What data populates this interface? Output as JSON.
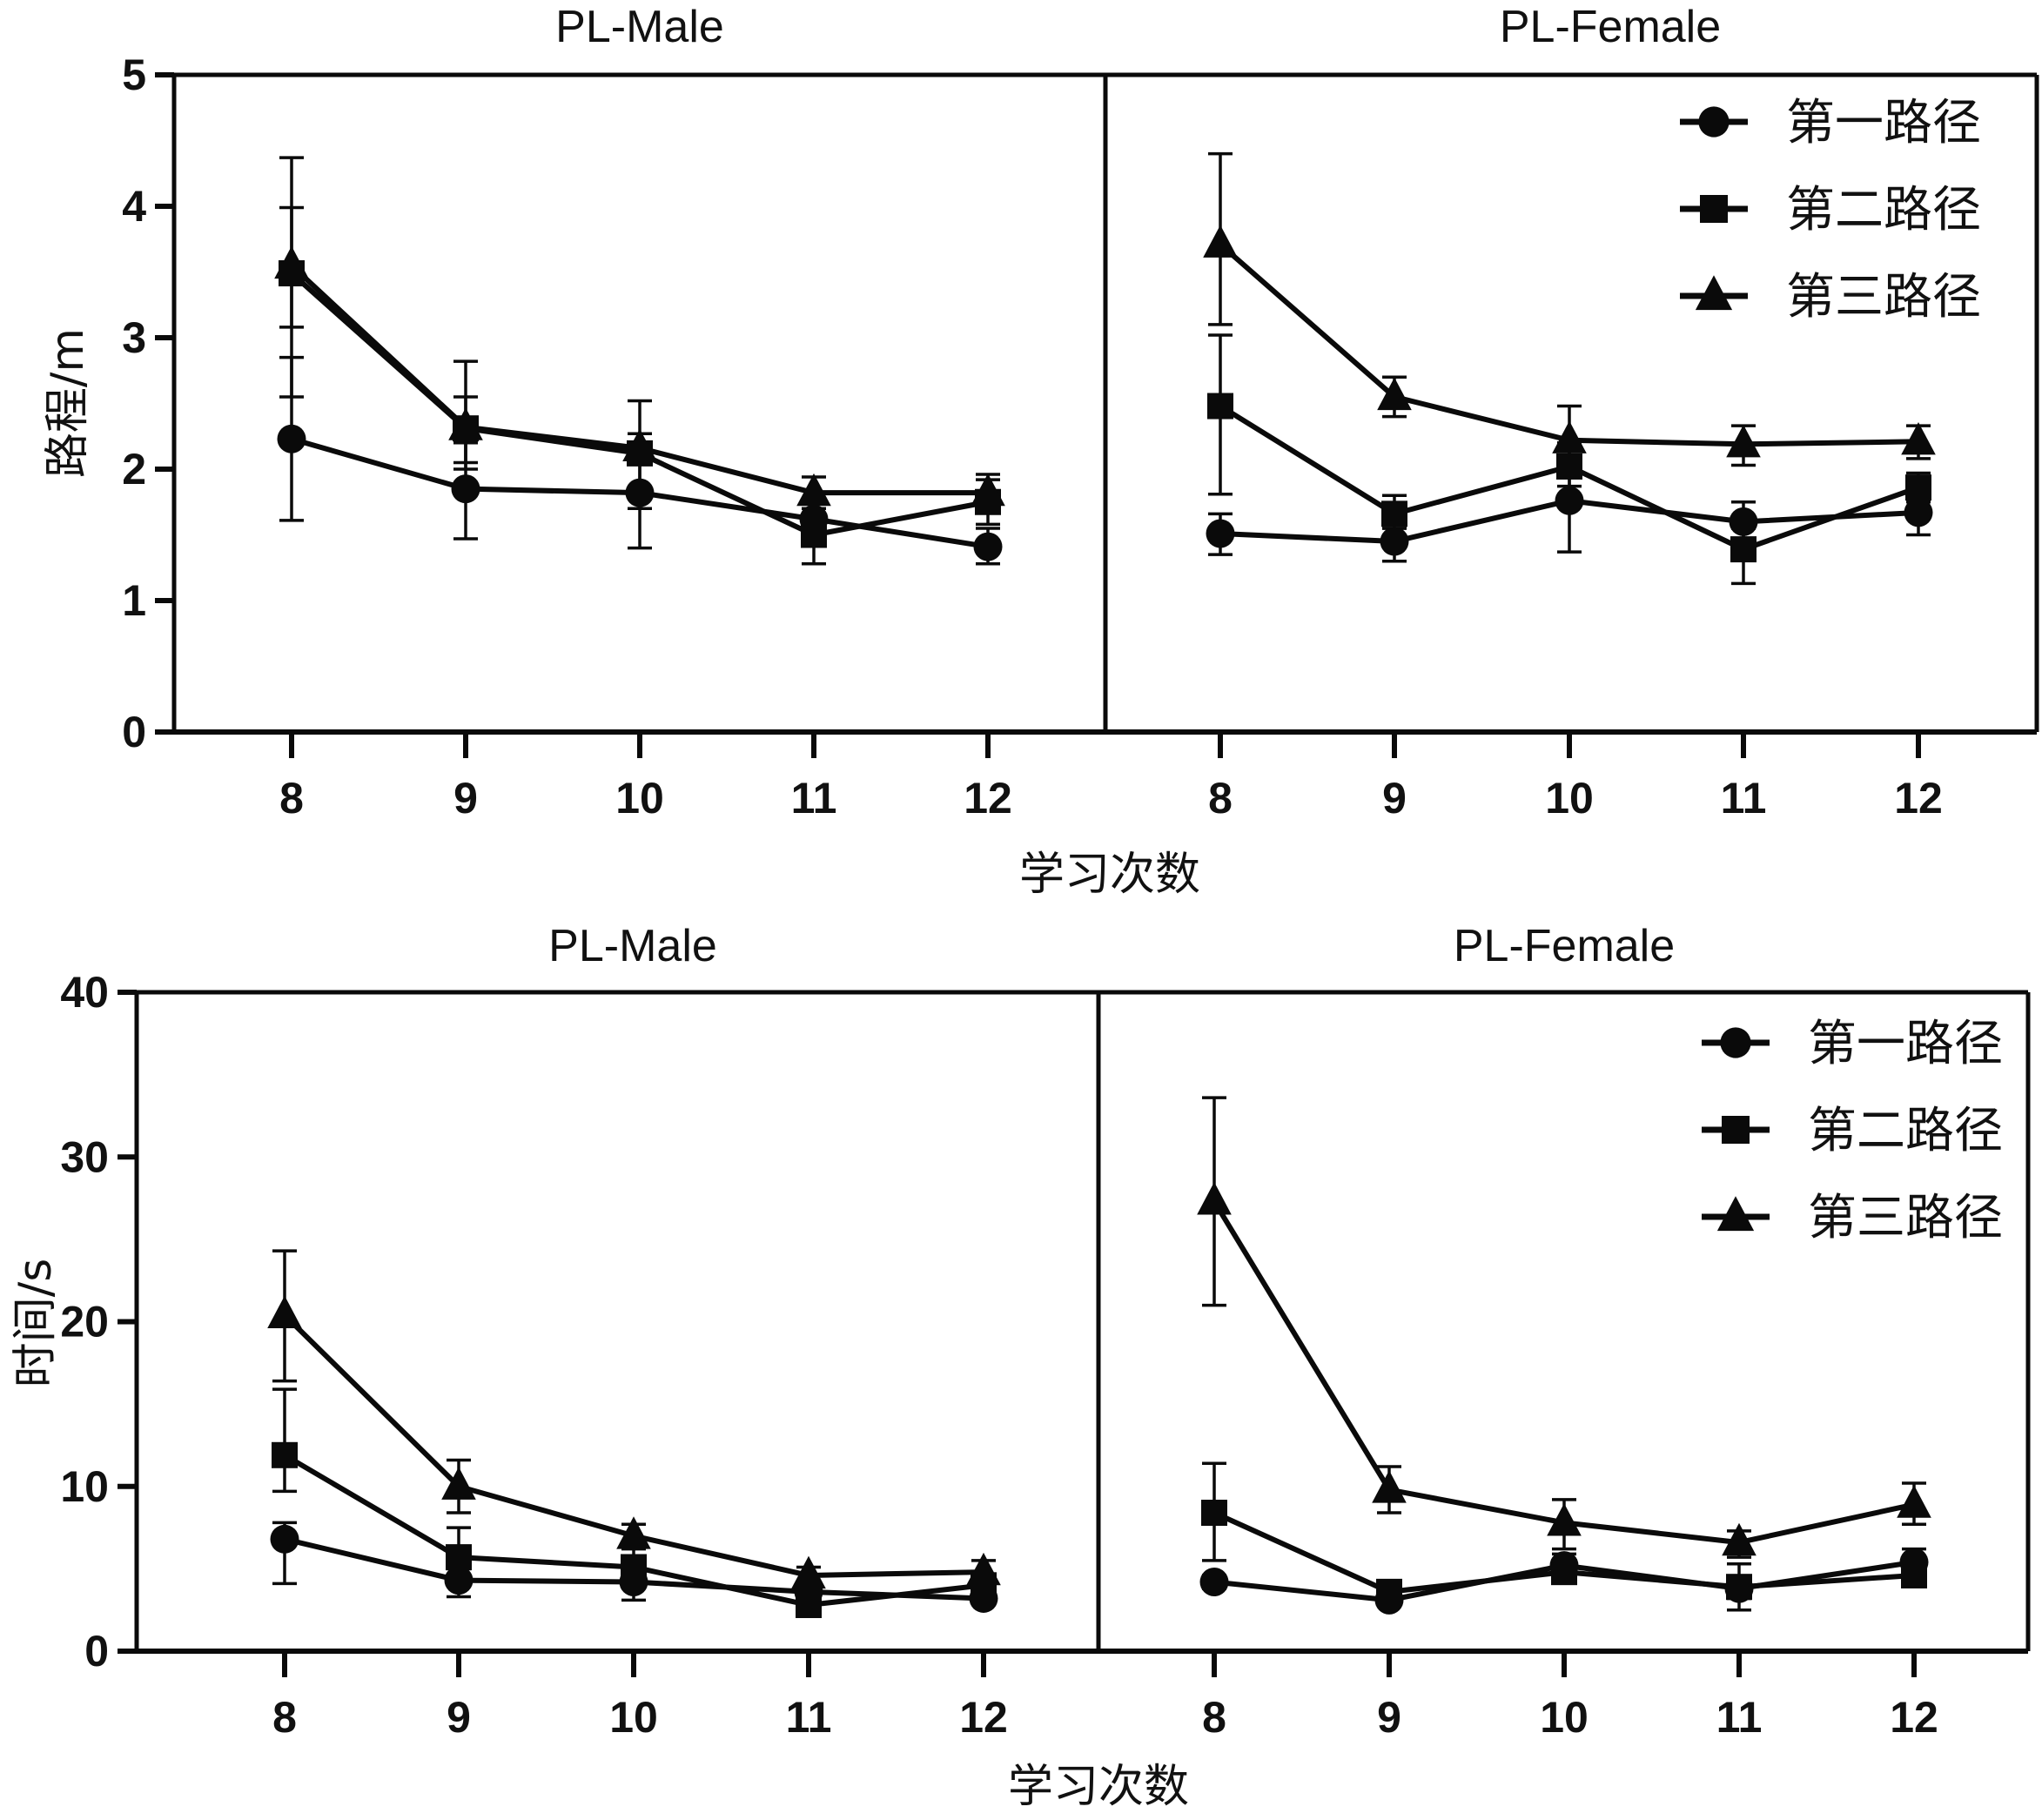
{
  "figure": {
    "xlabel": "学习次数",
    "legend": [
      "第一路径",
      "第二路径",
      "第三路径"
    ]
  },
  "chart_data": [
    {
      "type": "line",
      "title": "PL-Male",
      "row": "distance",
      "xlabel": "学习次数",
      "ylabel": "路程/m",
      "x": [
        8,
        9,
        10,
        11,
        12
      ],
      "ylim": [
        0,
        5
      ],
      "yticks": [
        0,
        1,
        2,
        3,
        4,
        5
      ],
      "grid": false,
      "legend": "none",
      "series": [
        {
          "name": "第一路径",
          "marker": "circle",
          "values": [
            2.23,
            1.85,
            1.82,
            1.62,
            1.41
          ],
          "err_low": [
            1.61,
            1.47,
            1.4,
            1.48,
            1.28
          ],
          "err_high": [
            2.85,
            2.2,
            2.2,
            1.75,
            1.55
          ]
        },
        {
          "name": "第二路径",
          "marker": "square",
          "values": [
            3.49,
            2.31,
            2.12,
            1.5,
            1.75
          ],
          "err_low": [
            3.08,
            2.0,
            1.7,
            1.28,
            1.58
          ],
          "err_high": [
            3.99,
            2.55,
            2.27,
            1.62,
            1.92
          ]
        },
        {
          "name": "第三路径",
          "marker": "triangle",
          "values": [
            3.55,
            2.32,
            2.16,
            1.82,
            1.82
          ],
          "err_low": [
            2.55,
            2.05,
            2.05,
            1.7,
            1.68
          ],
          "err_high": [
            4.37,
            2.82,
            2.52,
            1.94,
            1.96
          ]
        }
      ]
    },
    {
      "type": "line",
      "title": "PL-Female",
      "row": "distance",
      "xlabel": "学习次数",
      "ylabel": "路程/m",
      "x": [
        8,
        9,
        10,
        11,
        12
      ],
      "ylim": [
        0,
        5
      ],
      "yticks": [
        0,
        1,
        2,
        3,
        4,
        5
      ],
      "grid": false,
      "legend": "top-right",
      "series": [
        {
          "name": "第一路径",
          "marker": "circle",
          "values": [
            1.51,
            1.45,
            1.76,
            1.6,
            1.67
          ],
          "err_low": [
            1.35,
            1.3,
            1.37,
            1.45,
            1.5
          ],
          "err_high": [
            1.66,
            1.55,
            2.0,
            1.75,
            1.8
          ]
        },
        {
          "name": "第二路径",
          "marker": "square",
          "values": [
            2.48,
            1.66,
            2.02,
            1.39,
            1.86
          ],
          "err_low": [
            1.81,
            1.55,
            1.87,
            1.13,
            1.75
          ],
          "err_high": [
            3.02,
            1.8,
            2.2,
            1.55,
            1.97
          ]
        },
        {
          "name": "第三路径",
          "marker": "triangle",
          "values": [
            3.71,
            2.55,
            2.22,
            2.19,
            2.21
          ],
          "err_low": [
            3.1,
            2.4,
            1.95,
            2.03,
            2.08
          ],
          "err_high": [
            4.4,
            2.7,
            2.48,
            2.33,
            2.33
          ]
        }
      ]
    },
    {
      "type": "line",
      "title": "PL-Male",
      "row": "time",
      "xlabel": "学习次数",
      "ylabel": "时间/s",
      "x": [
        8,
        9,
        10,
        11,
        12
      ],
      "ylim": [
        0,
        40
      ],
      "yticks": [
        0,
        10,
        20,
        30,
        40
      ],
      "grid": false,
      "legend": "none",
      "series": [
        {
          "name": "第一路径",
          "marker": "circle",
          "values": [
            6.8,
            4.3,
            4.2,
            3.6,
            3.2
          ],
          "err_low": [
            4.1,
            3.3,
            3.1,
            3.0,
            2.9
          ],
          "err_high": [
            7.8,
            5.0,
            5.0,
            4.2,
            3.6
          ]
        },
        {
          "name": "第二路径",
          "marker": "square",
          "values": [
            11.9,
            5.7,
            5.1,
            2.8,
            4.0
          ],
          "err_low": [
            9.7,
            4.6,
            4.0,
            2.3,
            3.5
          ],
          "err_high": [
            15.9,
            7.5,
            6.2,
            3.4,
            4.5
          ]
        },
        {
          "name": "第三路径",
          "marker": "triangle",
          "values": [
            20.4,
            10.0,
            7.0,
            4.6,
            4.8
          ],
          "err_low": [
            16.4,
            8.4,
            6.3,
            4.1,
            4.2
          ],
          "err_high": [
            24.3,
            11.6,
            7.7,
            5.1,
            5.5
          ]
        }
      ]
    },
    {
      "type": "line",
      "title": "PL-Female",
      "row": "time",
      "xlabel": "学习次数",
      "ylabel": "时间/s",
      "x": [
        8,
        9,
        10,
        11,
        12
      ],
      "ylim": [
        0,
        40
      ],
      "yticks": [
        0,
        10,
        20,
        30,
        40
      ],
      "grid": false,
      "legend": "top-right",
      "series": [
        {
          "name": "第一路径",
          "marker": "circle",
          "values": [
            4.2,
            3.1,
            5.2,
            3.8,
            5.4
          ],
          "err_low": [
            3.8,
            2.8,
            4.5,
            3.2,
            4.6
          ],
          "err_high": [
            4.6,
            3.5,
            5.9,
            4.4,
            6.2
          ]
        },
        {
          "name": "第二路径",
          "marker": "square",
          "values": [
            8.4,
            3.6,
            4.8,
            3.9,
            4.6
          ],
          "err_low": [
            5.5,
            3.2,
            4.2,
            2.5,
            4.0
          ],
          "err_high": [
            11.4,
            4.0,
            5.4,
            5.3,
            5.2
          ]
        },
        {
          "name": "第三路径",
          "marker": "triangle",
          "values": [
            27.3,
            9.8,
            7.8,
            6.6,
            8.9
          ],
          "err_low": [
            21.0,
            8.4,
            6.2,
            5.7,
            7.7
          ],
          "err_high": [
            33.6,
            11.2,
            9.2,
            7.3,
            10.2
          ]
        }
      ]
    }
  ]
}
